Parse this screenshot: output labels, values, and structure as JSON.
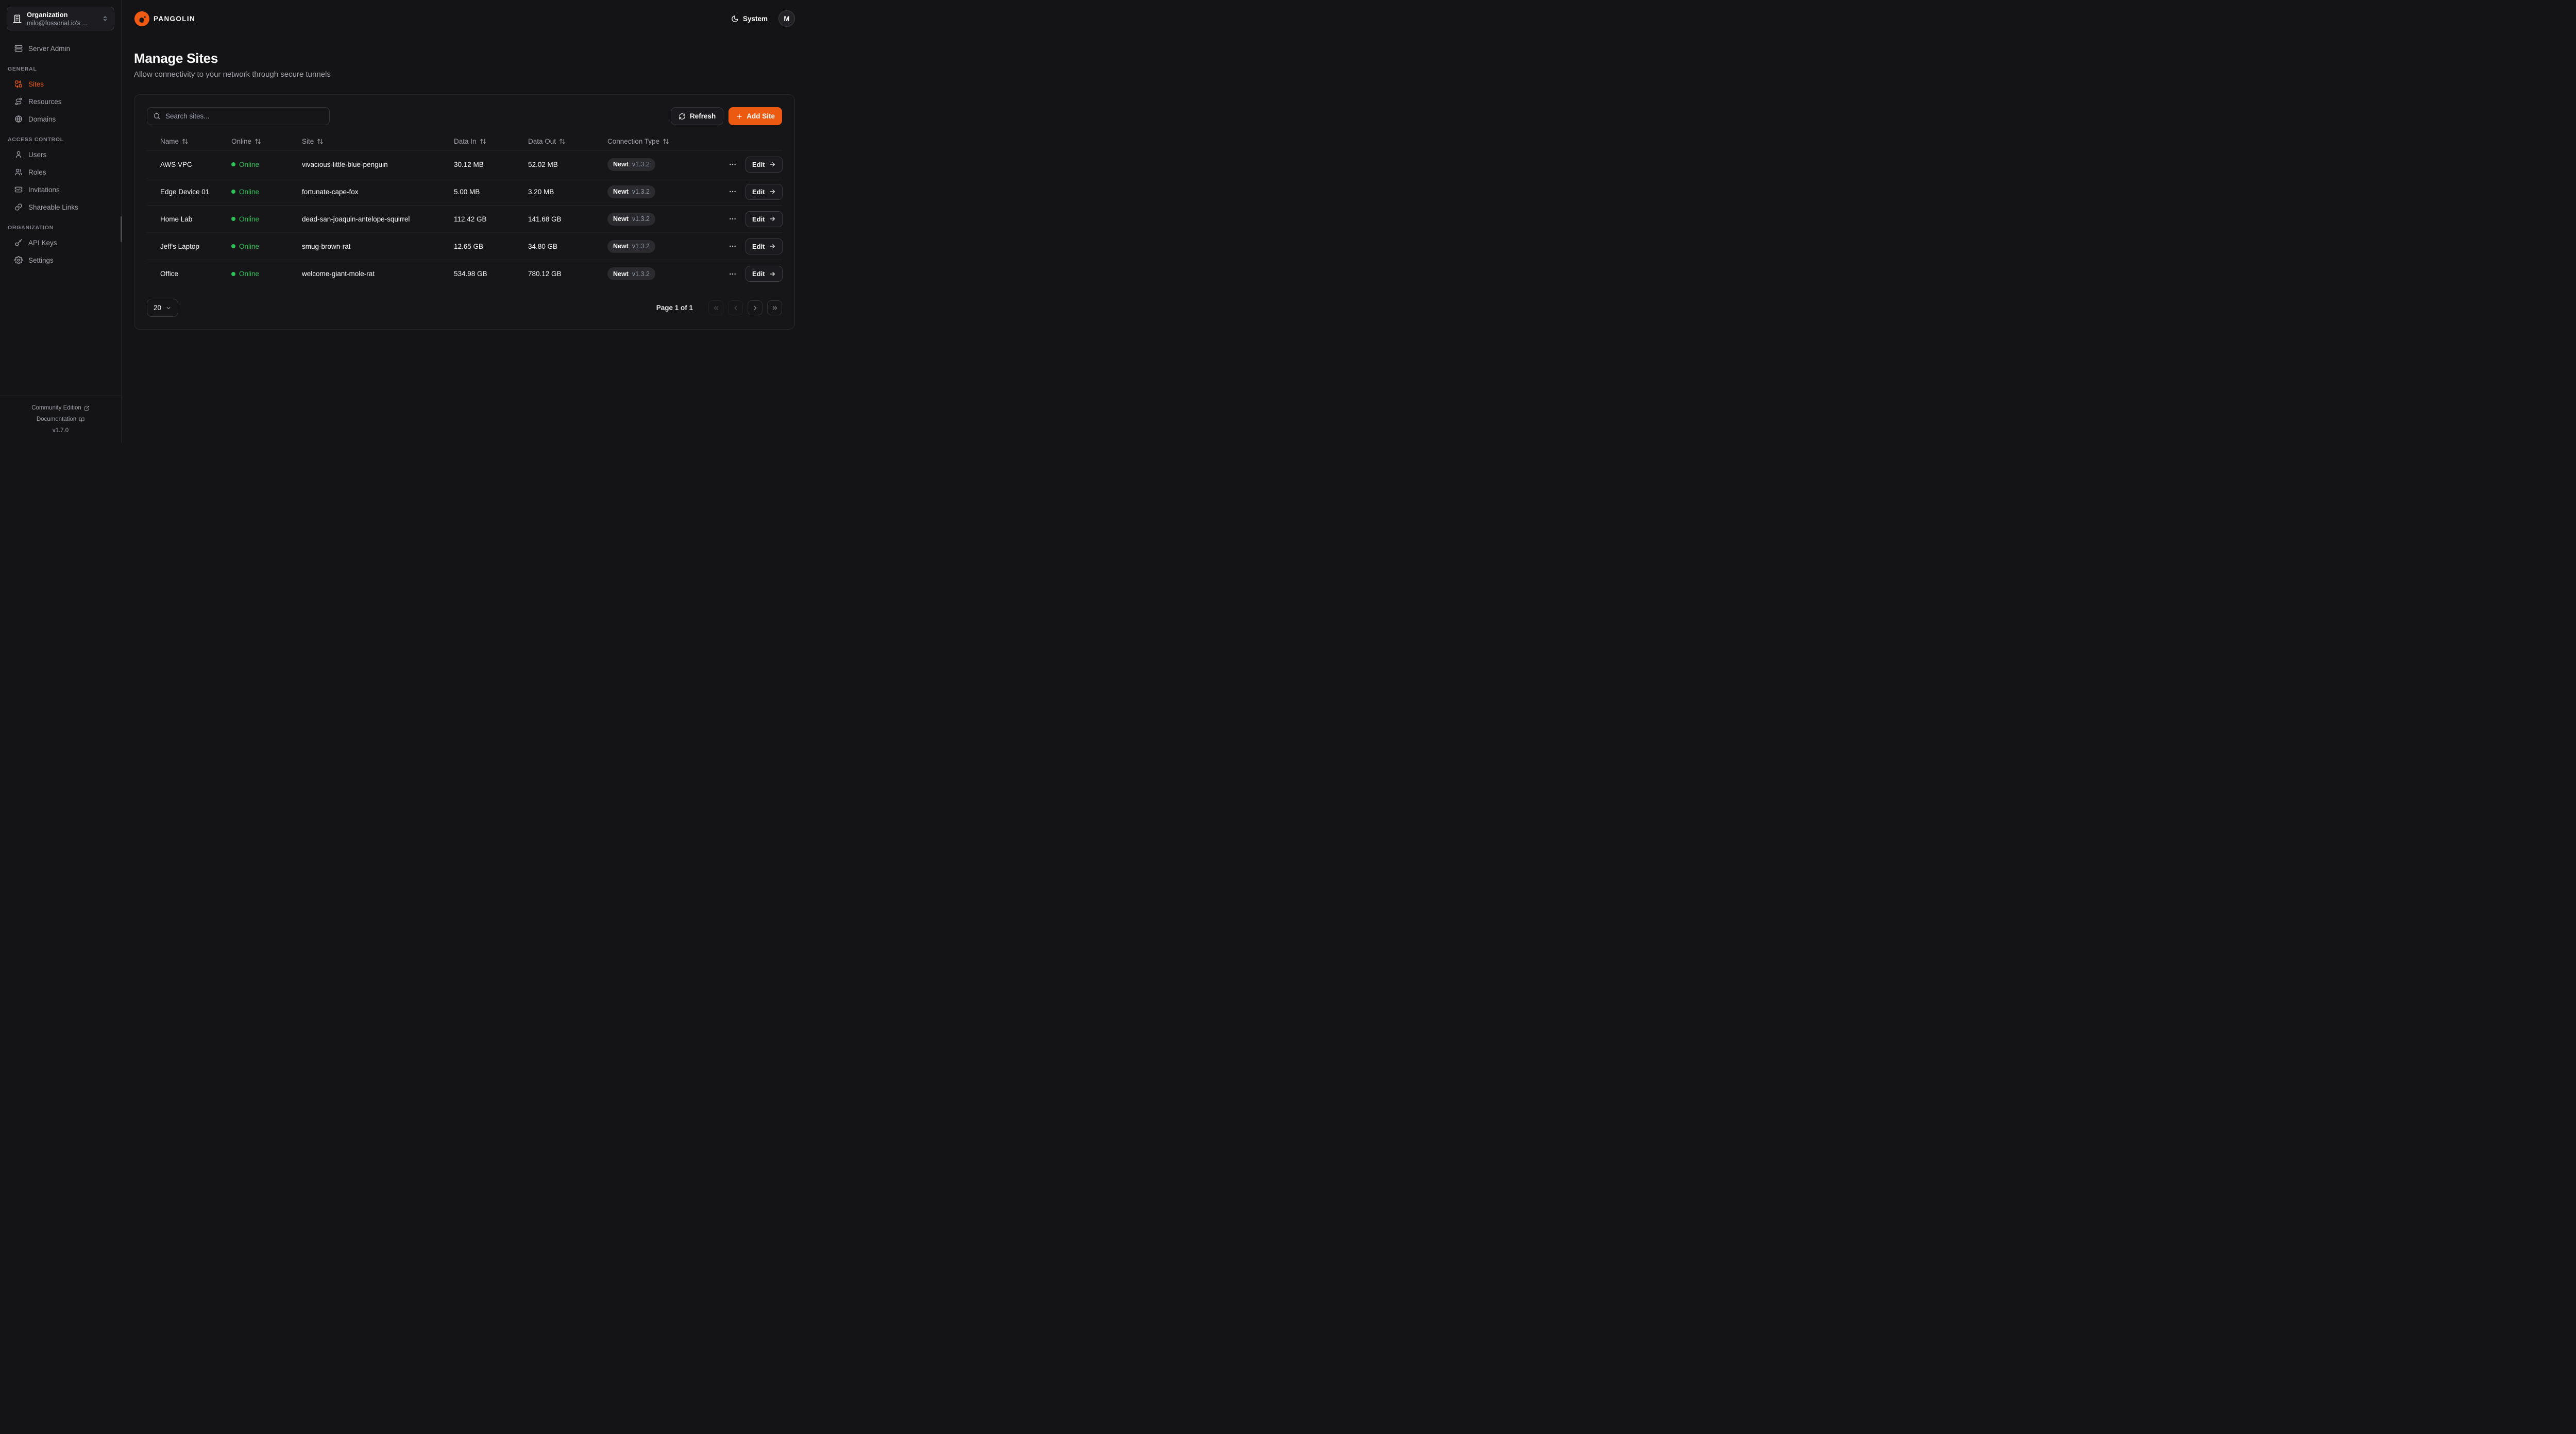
{
  "sidebar": {
    "org_selector": {
      "label": "Organization",
      "value": "milo@fossorial.io's ...",
      "icon": "building"
    },
    "nav": [
      {
        "heading": null,
        "items": [
          {
            "label": "Server Admin",
            "icon": "server",
            "active": false
          }
        ]
      },
      {
        "heading": "GENERAL",
        "items": [
          {
            "label": "Sites",
            "icon": "combine",
            "active": true
          },
          {
            "label": "Resources",
            "icon": "route",
            "active": false
          },
          {
            "label": "Domains",
            "icon": "globe",
            "active": false
          }
        ]
      },
      {
        "heading": "ACCESS CONTROL",
        "items": [
          {
            "label": "Users",
            "icon": "user",
            "active": false
          },
          {
            "label": "Roles",
            "icon": "users",
            "active": false
          },
          {
            "label": "Invitations",
            "icon": "ticket-check",
            "active": false
          },
          {
            "label": "Shareable Links",
            "icon": "link",
            "active": false
          }
        ]
      },
      {
        "heading": "ORGANIZATION",
        "items": [
          {
            "label": "API Keys",
            "icon": "key",
            "active": false
          },
          {
            "label": "Settings",
            "icon": "settings",
            "active": false
          }
        ]
      }
    ],
    "footer": {
      "community": "Community Edition",
      "documentation": "Documentation",
      "version": "v1.7.0"
    }
  },
  "header": {
    "brand": "PANGOLIN",
    "theme_label": "System",
    "avatar_initial": "M"
  },
  "page": {
    "title": "Manage Sites",
    "subtitle": "Allow connectivity to your network through secure tunnels"
  },
  "toolbar": {
    "search_placeholder": "Search sites...",
    "refresh_label": "Refresh",
    "add_site_label": "Add Site"
  },
  "table": {
    "columns": [
      "Name",
      "Online",
      "Site",
      "Data In",
      "Data Out",
      "Connection Type"
    ],
    "edit_label": "Edit",
    "rows": [
      {
        "name": "AWS VPC",
        "online": "Online",
        "site": "vivacious-little-blue-penguin",
        "data_in": "30.12 MB",
        "data_out": "52.02 MB",
        "conn_type": "Newt",
        "conn_version": "v1.3.2"
      },
      {
        "name": "Edge Device 01",
        "online": "Online",
        "site": "fortunate-cape-fox",
        "data_in": "5.00 MB",
        "data_out": "3.20 MB",
        "conn_type": "Newt",
        "conn_version": "v1.3.2"
      },
      {
        "name": "Home Lab",
        "online": "Online",
        "site": "dead-san-joaquin-antelope-squirrel",
        "data_in": "112.42 GB",
        "data_out": "141.68 GB",
        "conn_type": "Newt",
        "conn_version": "v1.3.2"
      },
      {
        "name": "Jeff's Laptop",
        "online": "Online",
        "site": "smug-brown-rat",
        "data_in": "12.65 GB",
        "data_out": "34.80 GB",
        "conn_type": "Newt",
        "conn_version": "v1.3.2"
      },
      {
        "name": "Office",
        "online": "Online",
        "site": "welcome-giant-mole-rat",
        "data_in": "534.98 GB",
        "data_out": "780.12 GB",
        "conn_type": "Newt",
        "conn_version": "v1.3.2"
      }
    ]
  },
  "pagination": {
    "page_size": "20",
    "status": "Page 1 of 1"
  },
  "colors": {
    "accent": "#ec5a11",
    "online_green": "#2bc157",
    "background": "#141416",
    "card": "#161619"
  }
}
